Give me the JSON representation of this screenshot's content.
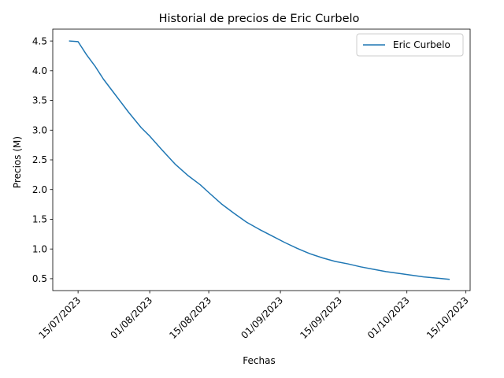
{
  "chart_data": {
    "type": "line",
    "title": "Historial de precios de Eric Curbelo",
    "xlabel": "Fechas",
    "ylabel": "Precios (M)",
    "x_axis_type": "date",
    "xlim": [
      "2023-07-09",
      "2023-10-16"
    ],
    "ylim": [
      0.3,
      4.7
    ],
    "x_ticks": [
      {
        "date": "2023-07-15",
        "label": "15/07/2023"
      },
      {
        "date": "2023-08-01",
        "label": "01/08/2023"
      },
      {
        "date": "2023-08-15",
        "label": "15/08/2023"
      },
      {
        "date": "2023-09-01",
        "label": "01/09/2023"
      },
      {
        "date": "2023-09-15",
        "label": "15/09/2023"
      },
      {
        "date": "2023-10-01",
        "label": "01/10/2023"
      },
      {
        "date": "2023-10-15",
        "label": "15/10/2023"
      }
    ],
    "y_ticks": [
      0.5,
      1.0,
      1.5,
      2.0,
      2.5,
      3.0,
      3.5,
      4.0,
      4.5
    ],
    "y_tick_labels": [
      "0.5",
      "1.0",
      "1.5",
      "2.0",
      "2.5",
      "3.0",
      "3.5",
      "4.0",
      "4.5"
    ],
    "grid": false,
    "legend_position": "top-right",
    "series": [
      {
        "name": "Eric Curbelo",
        "color": "#1f77b4",
        "x": [
          "2023-07-13",
          "2023-07-15",
          "2023-07-17",
          "2023-07-19",
          "2023-07-21",
          "2023-07-24",
          "2023-07-27",
          "2023-07-30",
          "2023-08-01",
          "2023-08-04",
          "2023-08-07",
          "2023-08-10",
          "2023-08-13",
          "2023-08-15",
          "2023-08-18",
          "2023-08-21",
          "2023-08-24",
          "2023-08-27",
          "2023-08-30",
          "2023-09-02",
          "2023-09-05",
          "2023-09-08",
          "2023-09-11",
          "2023-09-14",
          "2023-09-17",
          "2023-09-20",
          "2023-09-23",
          "2023-09-26",
          "2023-09-29",
          "2023-10-02",
          "2023-10-05",
          "2023-10-08",
          "2023-10-11"
        ],
        "values": [
          4.5,
          4.49,
          4.27,
          4.08,
          3.86,
          3.58,
          3.3,
          3.04,
          2.9,
          2.66,
          2.43,
          2.24,
          2.08,
          1.95,
          1.76,
          1.6,
          1.45,
          1.33,
          1.22,
          1.11,
          1.01,
          0.92,
          0.85,
          0.79,
          0.75,
          0.7,
          0.66,
          0.62,
          0.59,
          0.56,
          0.53,
          0.51,
          0.49
        ]
      }
    ]
  }
}
